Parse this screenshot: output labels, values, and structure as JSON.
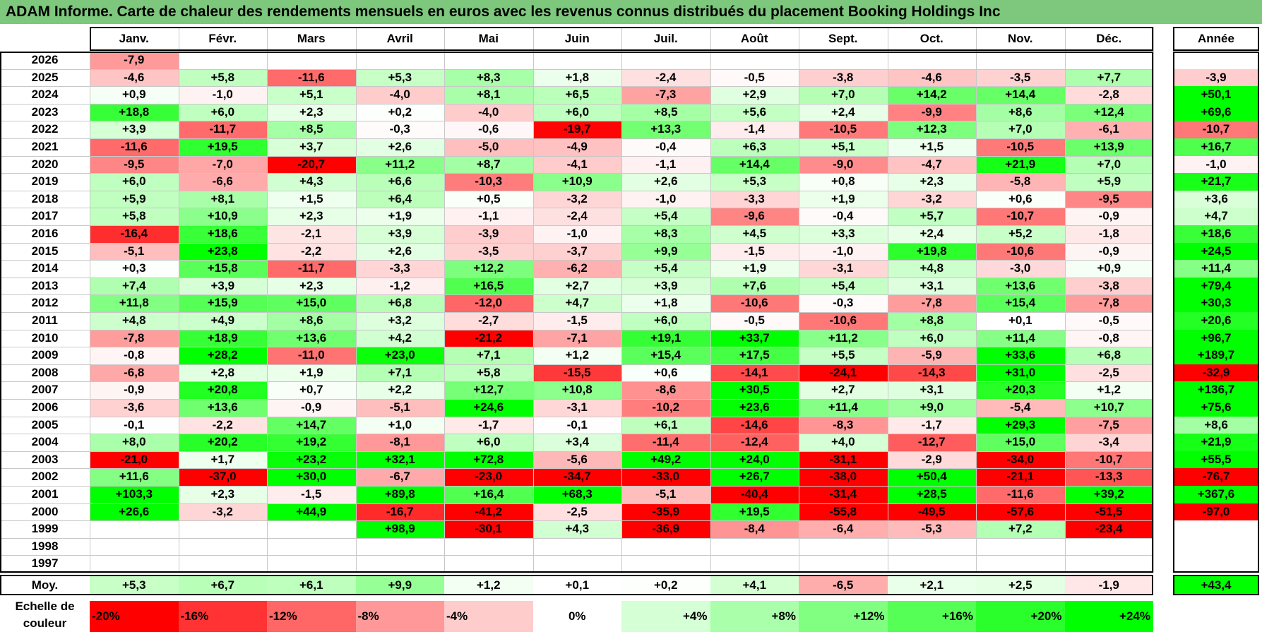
{
  "title": "ADAM Informe. Carte de chaleur des rendements mensuels en euros avec les revenus connus distribués du placement Booking Holdings Inc",
  "chart_data": {
    "type": "heatmap",
    "title": "ADAM Informe. Carte de chaleur des rendements mensuels en euros avec les revenus connus distribués du placement Booking Holdings Inc",
    "months": [
      "Janv.",
      "Févr.",
      "Mars",
      "Avril",
      "Mai",
      "Juin",
      "Juil.",
      "Août",
      "Sept.",
      "Oct.",
      "Nov.",
      "Déc."
    ],
    "year_header": "Année",
    "years": [
      "2026",
      "2025",
      "2024",
      "2023",
      "2022",
      "2021",
      "2020",
      "2019",
      "2018",
      "2017",
      "2016",
      "2015",
      "2014",
      "2013",
      "2012",
      "2011",
      "2010",
      "2009",
      "2008",
      "2007",
      "2006",
      "2005",
      "2004",
      "2003",
      "2002",
      "2001",
      "2000",
      "1999",
      "1998",
      "1997"
    ],
    "values": [
      [
        "-7,9",
        "",
        "",
        "",
        "",
        "",
        "",
        "",
        "",
        "",
        "",
        ""
      ],
      [
        "-4,6",
        "+5,8",
        "-11,6",
        "+5,3",
        "+8,3",
        "+1,8",
        "-2,4",
        "-0,5",
        "-3,8",
        "-4,6",
        "-3,5",
        "+7,7"
      ],
      [
        "+0,9",
        "-1,0",
        "+5,1",
        "-4,0",
        "+8,1",
        "+6,5",
        "-7,3",
        "+2,9",
        "+7,0",
        "+14,2",
        "+14,4",
        "-2,8"
      ],
      [
        "+18,8",
        "+6,0",
        "+2,3",
        "+0,2",
        "-4,0",
        "+6,0",
        "+8,5",
        "+5,6",
        "+2,4",
        "-9,9",
        "+8,6",
        "+12,4"
      ],
      [
        "+3,9",
        "-11,7",
        "+8,5",
        "-0,3",
        "-0,6",
        "-19,7",
        "+13,3",
        "-1,4",
        "-10,5",
        "+12,3",
        "+7,0",
        "-6,1"
      ],
      [
        "-11,6",
        "+19,5",
        "+3,7",
        "+2,6",
        "-5,0",
        "-4,9",
        "-0,4",
        "+6,3",
        "+5,1",
        "+1,5",
        "-10,5",
        "+13,9"
      ],
      [
        "-9,5",
        "-7,0",
        "-20,7",
        "+11,2",
        "+8,7",
        "-4,1",
        "-1,1",
        "+14,4",
        "-9,0",
        "-4,7",
        "+21,9",
        "+7,0"
      ],
      [
        "+6,0",
        "-6,6",
        "+4,3",
        "+6,6",
        "-10,3",
        "+10,9",
        "+2,6",
        "+5,3",
        "+0,8",
        "+2,3",
        "-5,8",
        "+5,9"
      ],
      [
        "+5,9",
        "+8,1",
        "+1,5",
        "+6,4",
        "+0,5",
        "-3,2",
        "-1,0",
        "-3,3",
        "+1,9",
        "-3,2",
        "+0,6",
        "-9,5"
      ],
      [
        "+5,8",
        "+10,9",
        "+2,3",
        "+1,9",
        "-1,1",
        "-2,4",
        "+5,4",
        "-9,6",
        "-0,4",
        "+5,7",
        "-10,7",
        "-0,9"
      ],
      [
        "-16,4",
        "+18,6",
        "-2,1",
        "+3,9",
        "-3,9",
        "-1,0",
        "+8,3",
        "+4,5",
        "+3,3",
        "+2,4",
        "+5,2",
        "-1,8"
      ],
      [
        "-5,1",
        "+23,8",
        "-2,2",
        "+2,6",
        "-3,5",
        "-3,7",
        "+9,9",
        "-1,5",
        "-1,0",
        "+19,8",
        "-10,6",
        "-0,9"
      ],
      [
        "+0,3",
        "+15,8",
        "-11,7",
        "-3,3",
        "+12,2",
        "-6,2",
        "+5,4",
        "+1,9",
        "-3,1",
        "+4,8",
        "-3,0",
        "+0,9"
      ],
      [
        "+7,4",
        "+3,9",
        "+2,3",
        "-1,2",
        "+16,5",
        "+2,7",
        "+3,9",
        "+7,6",
        "+5,4",
        "+3,1",
        "+13,6",
        "-3,8"
      ],
      [
        "+11,8",
        "+15,9",
        "+15,0",
        "+6,8",
        "-12,0",
        "+4,7",
        "+1,8",
        "-10,6",
        "-0,3",
        "-7,8",
        "+15,4",
        "-7,8"
      ],
      [
        "+4,8",
        "+4,9",
        "+8,6",
        "+3,2",
        "-2,7",
        "-1,5",
        "+6,0",
        "-0,5",
        "-10,6",
        "+8,8",
        "+0,1",
        "-0,5"
      ],
      [
        "-7,8",
        "+18,9",
        "+13,6",
        "+4,2",
        "-21,2",
        "-7,1",
        "+19,1",
        "+33,7",
        "+11,2",
        "+6,0",
        "+11,4",
        "-0,8"
      ],
      [
        "-0,8",
        "+28,2",
        "-11,0",
        "+23,0",
        "+7,1",
        "+1,2",
        "+15,4",
        "+17,5",
        "+5,5",
        "-5,9",
        "+33,6",
        "+6,8"
      ],
      [
        "-6,8",
        "+2,8",
        "+1,9",
        "+7,1",
        "+5,8",
        "-15,5",
        "+0,6",
        "-14,1",
        "-24,1",
        "-14,3",
        "+31,0",
        "-2,5"
      ],
      [
        "-0,9",
        "+20,8",
        "+0,7",
        "+2,2",
        "+12,7",
        "+10,8",
        "-8,6",
        "+30,5",
        "+2,7",
        "+3,1",
        "+20,3",
        "+1,2"
      ],
      [
        "-3,6",
        "+13,6",
        "-0,9",
        "-5,1",
        "+24,6",
        "-3,1",
        "-10,2",
        "+23,6",
        "+11,4",
        "+9,0",
        "-5,4",
        "+10,7"
      ],
      [
        "-0,1",
        "-2,2",
        "+14,7",
        "+1,0",
        "-1,7",
        "-0,1",
        "+6,1",
        "-14,6",
        "-8,3",
        "-1,7",
        "+29,3",
        "-7,5"
      ],
      [
        "+8,0",
        "+20,2",
        "+19,2",
        "-8,1",
        "+6,0",
        "+3,4",
        "-11,4",
        "-12,4",
        "+4,0",
        "-12,7",
        "+15,0",
        "-3,4"
      ],
      [
        "-21,0",
        "+1,7",
        "+23,2",
        "+32,1",
        "+72,8",
        "-5,6",
        "+49,2",
        "+24,0",
        "-31,1",
        "-2,9",
        "-34,0",
        "-10,7"
      ],
      [
        "+11,6",
        "-37,0",
        "+30,0",
        "-6,7",
        "-23,0",
        "-34,7",
        "-33,0",
        "+26,7",
        "-38,0",
        "+50,4",
        "-21,1",
        "-13,3"
      ],
      [
        "+103,3",
        "+2,3",
        "-1,5",
        "+89,8",
        "+16,4",
        "+68,3",
        "-5,1",
        "-40,4",
        "-31,4",
        "+28,5",
        "-11,6",
        "+39,2"
      ],
      [
        "+26,6",
        "-3,2",
        "+44,9",
        "-16,7",
        "-41,2",
        "-2,5",
        "-35,9",
        "+19,5",
        "-55,8",
        "-49,5",
        "-57,6",
        "-51,5"
      ],
      [
        "",
        "",
        "",
        "+98,9",
        "-30,1",
        "+4,3",
        "-36,9",
        "-8,4",
        "-6,4",
        "-5,3",
        "+7,2",
        "-23,4"
      ],
      [
        "",
        "",
        "",
        "",
        "",
        "",
        "",
        "",
        "",
        "",
        "",
        ""
      ],
      [
        "",
        "",
        "",
        "",
        "",
        "",
        "",
        "",
        "",
        "",
        "",
        ""
      ]
    ],
    "annual": [
      "",
      "-3,9",
      "+50,1",
      "+69,6",
      "-10,7",
      "+16,7",
      "-1,0",
      "+21,7",
      "+3,6",
      "+4,7",
      "+18,6",
      "+24,5",
      "+11,4",
      "+79,4",
      "+30,3",
      "+20,6",
      "+96,7",
      "+189,7",
      "-32,9",
      "+136,7",
      "+75,6",
      "+8,6",
      "+21,9",
      "+55,5",
      "-76,7",
      "+367,6",
      "-97,0",
      "",
      "",
      ""
    ],
    "average_label": "Moy.",
    "averages": [
      "+5,3",
      "+6,7",
      "+6,1",
      "+9,9",
      "+1,2",
      "+0,1",
      "+0,2",
      "+4,1",
      "-6,5",
      "+2,1",
      "+2,5",
      "-1,9"
    ],
    "average_annual": "+43,4",
    "scale_label": "Echelle de couleur",
    "scale": [
      {
        "label": "-20%",
        "value": -20
      },
      {
        "label": "-16%",
        "value": -16
      },
      {
        "label": "-12%",
        "value": -12
      },
      {
        "label": "-8%",
        "value": -8
      },
      {
        "label": "-4%",
        "value": -4
      },
      {
        "label": "0%",
        "value": 0
      },
      {
        "label": "+4%",
        "value": 4
      },
      {
        "label": "+8%",
        "value": 8
      },
      {
        "label": "+12%",
        "value": 12
      },
      {
        "label": "+16%",
        "value": 16
      },
      {
        "label": "+20%",
        "value": 20
      },
      {
        "label": "+24%",
        "value": 24
      }
    ],
    "color_range": [
      -20,
      24
    ]
  }
}
